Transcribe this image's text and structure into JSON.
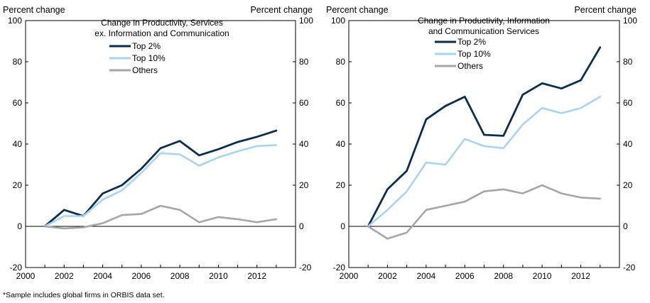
{
  "footnote": "*Sample includes global firms in ORBIS data set.",
  "chart_data": [
    {
      "type": "line",
      "title": "Change in Productivity, Services ex. Information  and Communication",
      "title_lines": [
        "Change in Productivity, Services",
        "ex. Information  and Communication"
      ],
      "ylabel_left": "Percent change",
      "ylabel_right": "Percent change",
      "xlim": [
        2000,
        2014
      ],
      "ylim": [
        -20,
        100
      ],
      "xticks": [
        2000,
        2002,
        2004,
        2006,
        2008,
        2010,
        2012
      ],
      "yticks": [
        -20,
        0,
        20,
        40,
        60,
        80,
        100
      ],
      "legend_position": "top-center",
      "x": [
        2001,
        2002,
        2003,
        2004,
        2005,
        2006,
        2007,
        2008,
        2009,
        2010,
        2011,
        2012,
        2013
      ],
      "series": [
        {
          "name": "Top 2%",
          "color": "#0b2d4f",
          "values": [
            0,
            8,
            5,
            16,
            20,
            28,
            38,
            41.5,
            34.5,
            37.5,
            41,
            43.5,
            46.5
          ]
        },
        {
          "name": "Top 10%",
          "color": "#a9d3f2",
          "values": [
            0,
            5,
            5,
            13,
            17.5,
            26,
            35.5,
            35,
            29.5,
            33.5,
            36.5,
            39,
            39.5
          ]
        },
        {
          "name": "Others",
          "color": "#a6a6a6",
          "values": [
            0,
            -1,
            -0.5,
            1.5,
            5.5,
            6,
            10,
            8,
            2,
            4.5,
            3.5,
            2,
            3.5
          ]
        }
      ]
    },
    {
      "type": "line",
      "title": "Change in Productivity, Information and Communication Services",
      "title_lines": [
        "Change in Productivity, Information",
        "and Communication Services"
      ],
      "ylabel_left": "Percent change",
      "ylabel_right": "Percent change",
      "xlim": [
        2000,
        2014
      ],
      "ylim": [
        -20,
        100
      ],
      "xticks": [
        2000,
        2002,
        2004,
        2006,
        2008,
        2010,
        2012
      ],
      "yticks": [
        -20,
        0,
        20,
        40,
        60,
        80,
        100
      ],
      "legend_position": "top-center",
      "x": [
        2001,
        2002,
        2003,
        2004,
        2005,
        2006,
        2007,
        2008,
        2009,
        2010,
        2011,
        2012,
        2013
      ],
      "series": [
        {
          "name": "Top 2%",
          "color": "#0b2d4f",
          "values": [
            0,
            18,
            27,
            52,
            58.5,
            63,
            44.5,
            44,
            64,
            69.5,
            67,
            71,
            87
          ]
        },
        {
          "name": "Top 10%",
          "color": "#a9d3f2",
          "values": [
            0,
            8,
            17,
            31,
            30,
            42.5,
            39,
            38,
            49.5,
            57.5,
            55,
            57.5,
            63
          ]
        },
        {
          "name": "Others",
          "color": "#a6a6a6",
          "values": [
            0,
            -6,
            -3,
            8,
            10,
            12,
            17,
            18,
            16,
            20,
            16,
            14,
            13.5
          ]
        }
      ]
    }
  ]
}
